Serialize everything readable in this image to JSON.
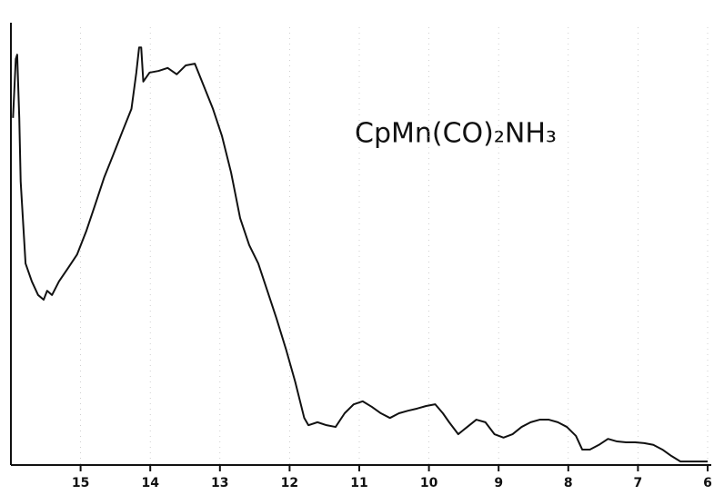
{
  "chart_data": {
    "type": "line",
    "annotation": "CpMn(CO)₂NH₃",
    "x": [
      15.97,
      15.93,
      15.91,
      15.88,
      15.86,
      15.79,
      15.7,
      15.61,
      15.53,
      15.48,
      15.41,
      15.31,
      15.18,
      15.05,
      14.92,
      14.79,
      14.66,
      14.53,
      14.4,
      14.27,
      14.2,
      14.16,
      14.13,
      14.1,
      14.01,
      13.88,
      13.75,
      13.62,
      13.49,
      13.36,
      13.23,
      13.1,
      12.97,
      12.84,
      12.71,
      12.58,
      12.45,
      12.32,
      12.19,
      12.05,
      11.92,
      11.79,
      11.73,
      11.6,
      11.47,
      11.34,
      11.21,
      11.08,
      10.95,
      10.82,
      10.69,
      10.56,
      10.43,
      10.3,
      10.17,
      10.04,
      9.91,
      9.8,
      9.71,
      9.58,
      9.45,
      9.32,
      9.19,
      9.06,
      8.93,
      8.8,
      8.67,
      8.54,
      8.41,
      8.28,
      8.15,
      8.02,
      7.89,
      7.8,
      7.69,
      7.56,
      7.43,
      7.3,
      7.17,
      7.04,
      6.91,
      6.78,
      6.65,
      6.52,
      6.39,
      6.26,
      6.0
    ],
    "series": [
      {
        "color": "#111111",
        "values": [
          80.9,
          94.7,
          95.7,
          80.9,
          66.0,
          46.8,
          42.6,
          39.4,
          38.3,
          40.4,
          39.4,
          42.6,
          45.7,
          48.9,
          54.3,
          60.6,
          67.0,
          72.3,
          77.7,
          83.0,
          91.5,
          97.4,
          97.4,
          89.4,
          91.5,
          91.9,
          92.6,
          91.1,
          93.2,
          93.6,
          88.3,
          83.0,
          76.6,
          68.1,
          57.4,
          51.1,
          46.8,
          40.4,
          34.0,
          26.6,
          19.1,
          10.6,
          8.9,
          9.6,
          8.9,
          8.5,
          11.7,
          13.8,
          14.5,
          13.2,
          11.7,
          10.6,
          11.7,
          12.3,
          12.8,
          13.4,
          13.8,
          11.7,
          9.6,
          6.8,
          8.5,
          10.2,
          9.6,
          6.8,
          6.0,
          6.8,
          8.5,
          9.6,
          10.2,
          10.2,
          9.6,
          8.5,
          6.4,
          3.2,
          3.2,
          4.3,
          5.7,
          5.1,
          4.9,
          4.9,
          4.7,
          4.3,
          3.2,
          1.7,
          0.4,
          0.4,
          0.4
        ]
      }
    ],
    "xlim": [
      16,
      6
    ],
    "xticks": [
      15,
      14,
      13,
      12,
      11,
      10,
      9,
      8,
      7,
      6
    ],
    "ylim": [
      0,
      100
    ],
    "grid": true
  }
}
